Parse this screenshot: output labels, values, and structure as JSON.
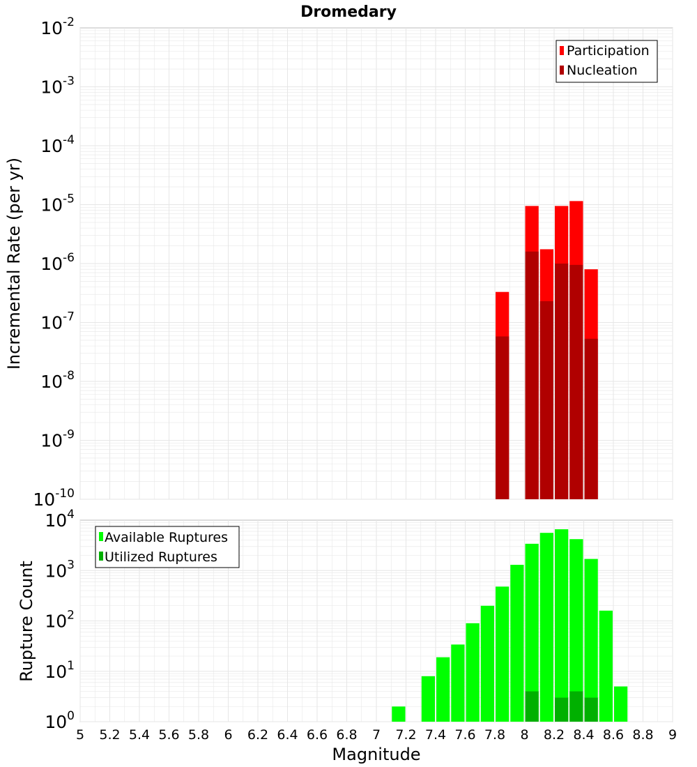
{
  "chart_data": {
    "type": "bar",
    "title": "Dromedary",
    "xlabel": "Magnitude",
    "xlim": [
      5,
      9
    ],
    "xticks": [
      "5",
      "5.2",
      "5.4",
      "5.6",
      "5.8",
      "6",
      "6.2",
      "6.4",
      "6.6",
      "6.8",
      "7",
      "7.2",
      "7.4",
      "7.6",
      "7.8",
      "8",
      "8.2",
      "8.4",
      "8.6",
      "8.8",
      "9"
    ],
    "bin_width": 0.1,
    "panels": [
      {
        "id": "rate",
        "ylabel": "Incremental Rate (per yr)",
        "yscale": "log",
        "ylim_exp": [
          -10,
          -2
        ],
        "legend_position": "top-right",
        "series": [
          {
            "name": "Participation",
            "color": "#ff0000",
            "x": [
              7.85,
              8.05,
              8.15,
              8.25,
              8.35,
              8.45
            ],
            "values": [
              3.3e-07,
              9.5e-06,
              1.75e-06,
              9.5e-06,
              1.15e-05,
              8e-07
            ]
          },
          {
            "name": "Nucleation",
            "color": "#b00000",
            "x": [
              7.85,
              8.05,
              8.15,
              8.25,
              8.35,
              8.45
            ],
            "values": [
              5.8e-08,
              1.6e-06,
              2.3e-07,
              1e-06,
              9.5e-07,
              5.3e-08
            ]
          }
        ]
      },
      {
        "id": "count",
        "ylabel": "Rupture Count",
        "yscale": "log",
        "ylim_exp": [
          0,
          4
        ],
        "legend_position": "top-left",
        "series": [
          {
            "name": "Available Ruptures",
            "color": "#00ff00",
            "x": [
              7.15,
              7.35,
              7.45,
              7.55,
              7.65,
              7.75,
              7.85,
              7.95,
              8.05,
              8.15,
              8.25,
              8.35,
              8.45,
              8.55,
              8.65
            ],
            "values": [
              2,
              8,
              19,
              34,
              90,
              200,
              480,
              1300,
              3400,
              5600,
              6600,
              4200,
              1700,
              160,
              5
            ]
          },
          {
            "name": "Utilized Ruptures",
            "color": "#00b000",
            "x": [
              7.85,
              8.05,
              8.15,
              8.25,
              8.35,
              8.45
            ],
            "values": [
              1,
              4,
              1,
              3,
              4,
              3
            ]
          }
        ]
      }
    ]
  },
  "colors": {
    "grid": "#e6e6e6",
    "axis": "#bbbbbb",
    "text": "#000000"
  }
}
